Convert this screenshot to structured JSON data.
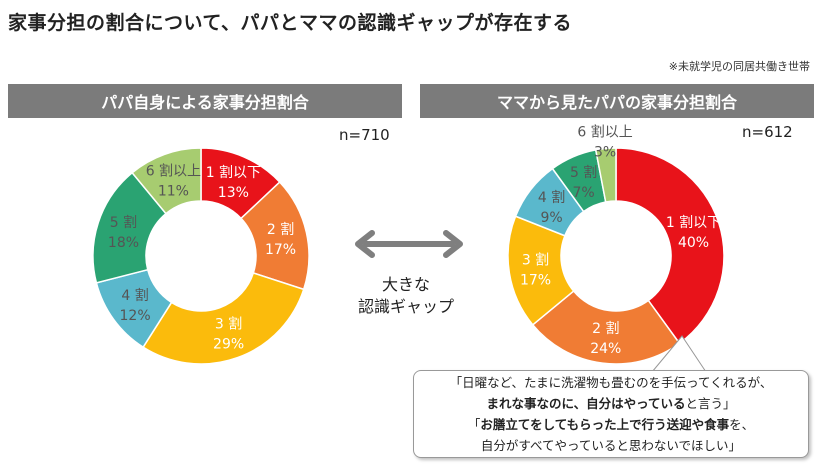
{
  "title": "家事分担の割合について、パパとママの認識ギャップが存在する",
  "footnote": "※未就学児の同居共働き世帯",
  "gap_label_line1": "大きな",
  "gap_label_line2": "認識ギャップ",
  "quote": {
    "line1": "「日曜など、たまに洗濯物も畳むのを手伝ってくれるが、",
    "line2_bold": "まれな事なのに、自分はやっている",
    "line2_tail": "と言う」",
    "line3_head": "「",
    "line3_bold1": "お膳立てをしてもらった上で行う送迎や食事",
    "line3_tail": "を、",
    "line4": "自分がすべてやっていると思わないでほしい」"
  },
  "colors": {
    "header_bg": "#7b7b7b",
    "slice_1": "#e8131a",
    "slice_2": "#f07c34",
    "slice_3": "#fbbb0c",
    "slice_4": "#5ab8cc",
    "slice_5": "#2aa372",
    "slice_6": "#a7cc70"
  },
  "chart_data": [
    {
      "type": "pie",
      "donut": true,
      "title": "パパ自身による家事分担割合",
      "n_label": "n=710",
      "labels": [
        "1 割以下",
        "2 割",
        "3 割",
        "4 割",
        "5 割",
        "6 割以上"
      ],
      "values": [
        13,
        17,
        29,
        12,
        18,
        11
      ],
      "value_labels": [
        "13%",
        "17%",
        "29%",
        "12%",
        "18%",
        "11%"
      ]
    },
    {
      "type": "pie",
      "donut": true,
      "title": "ママから見たパパの家事分担割合",
      "n_label": "n=612",
      "labels": [
        "1 割以下",
        "2 割",
        "3 割",
        "4 割",
        "5 割",
        "6 割以上"
      ],
      "values": [
        40,
        24,
        17,
        9,
        7,
        3
      ],
      "value_labels": [
        "40%",
        "24%",
        "17%",
        "9%",
        "7%",
        "3%"
      ]
    }
  ]
}
